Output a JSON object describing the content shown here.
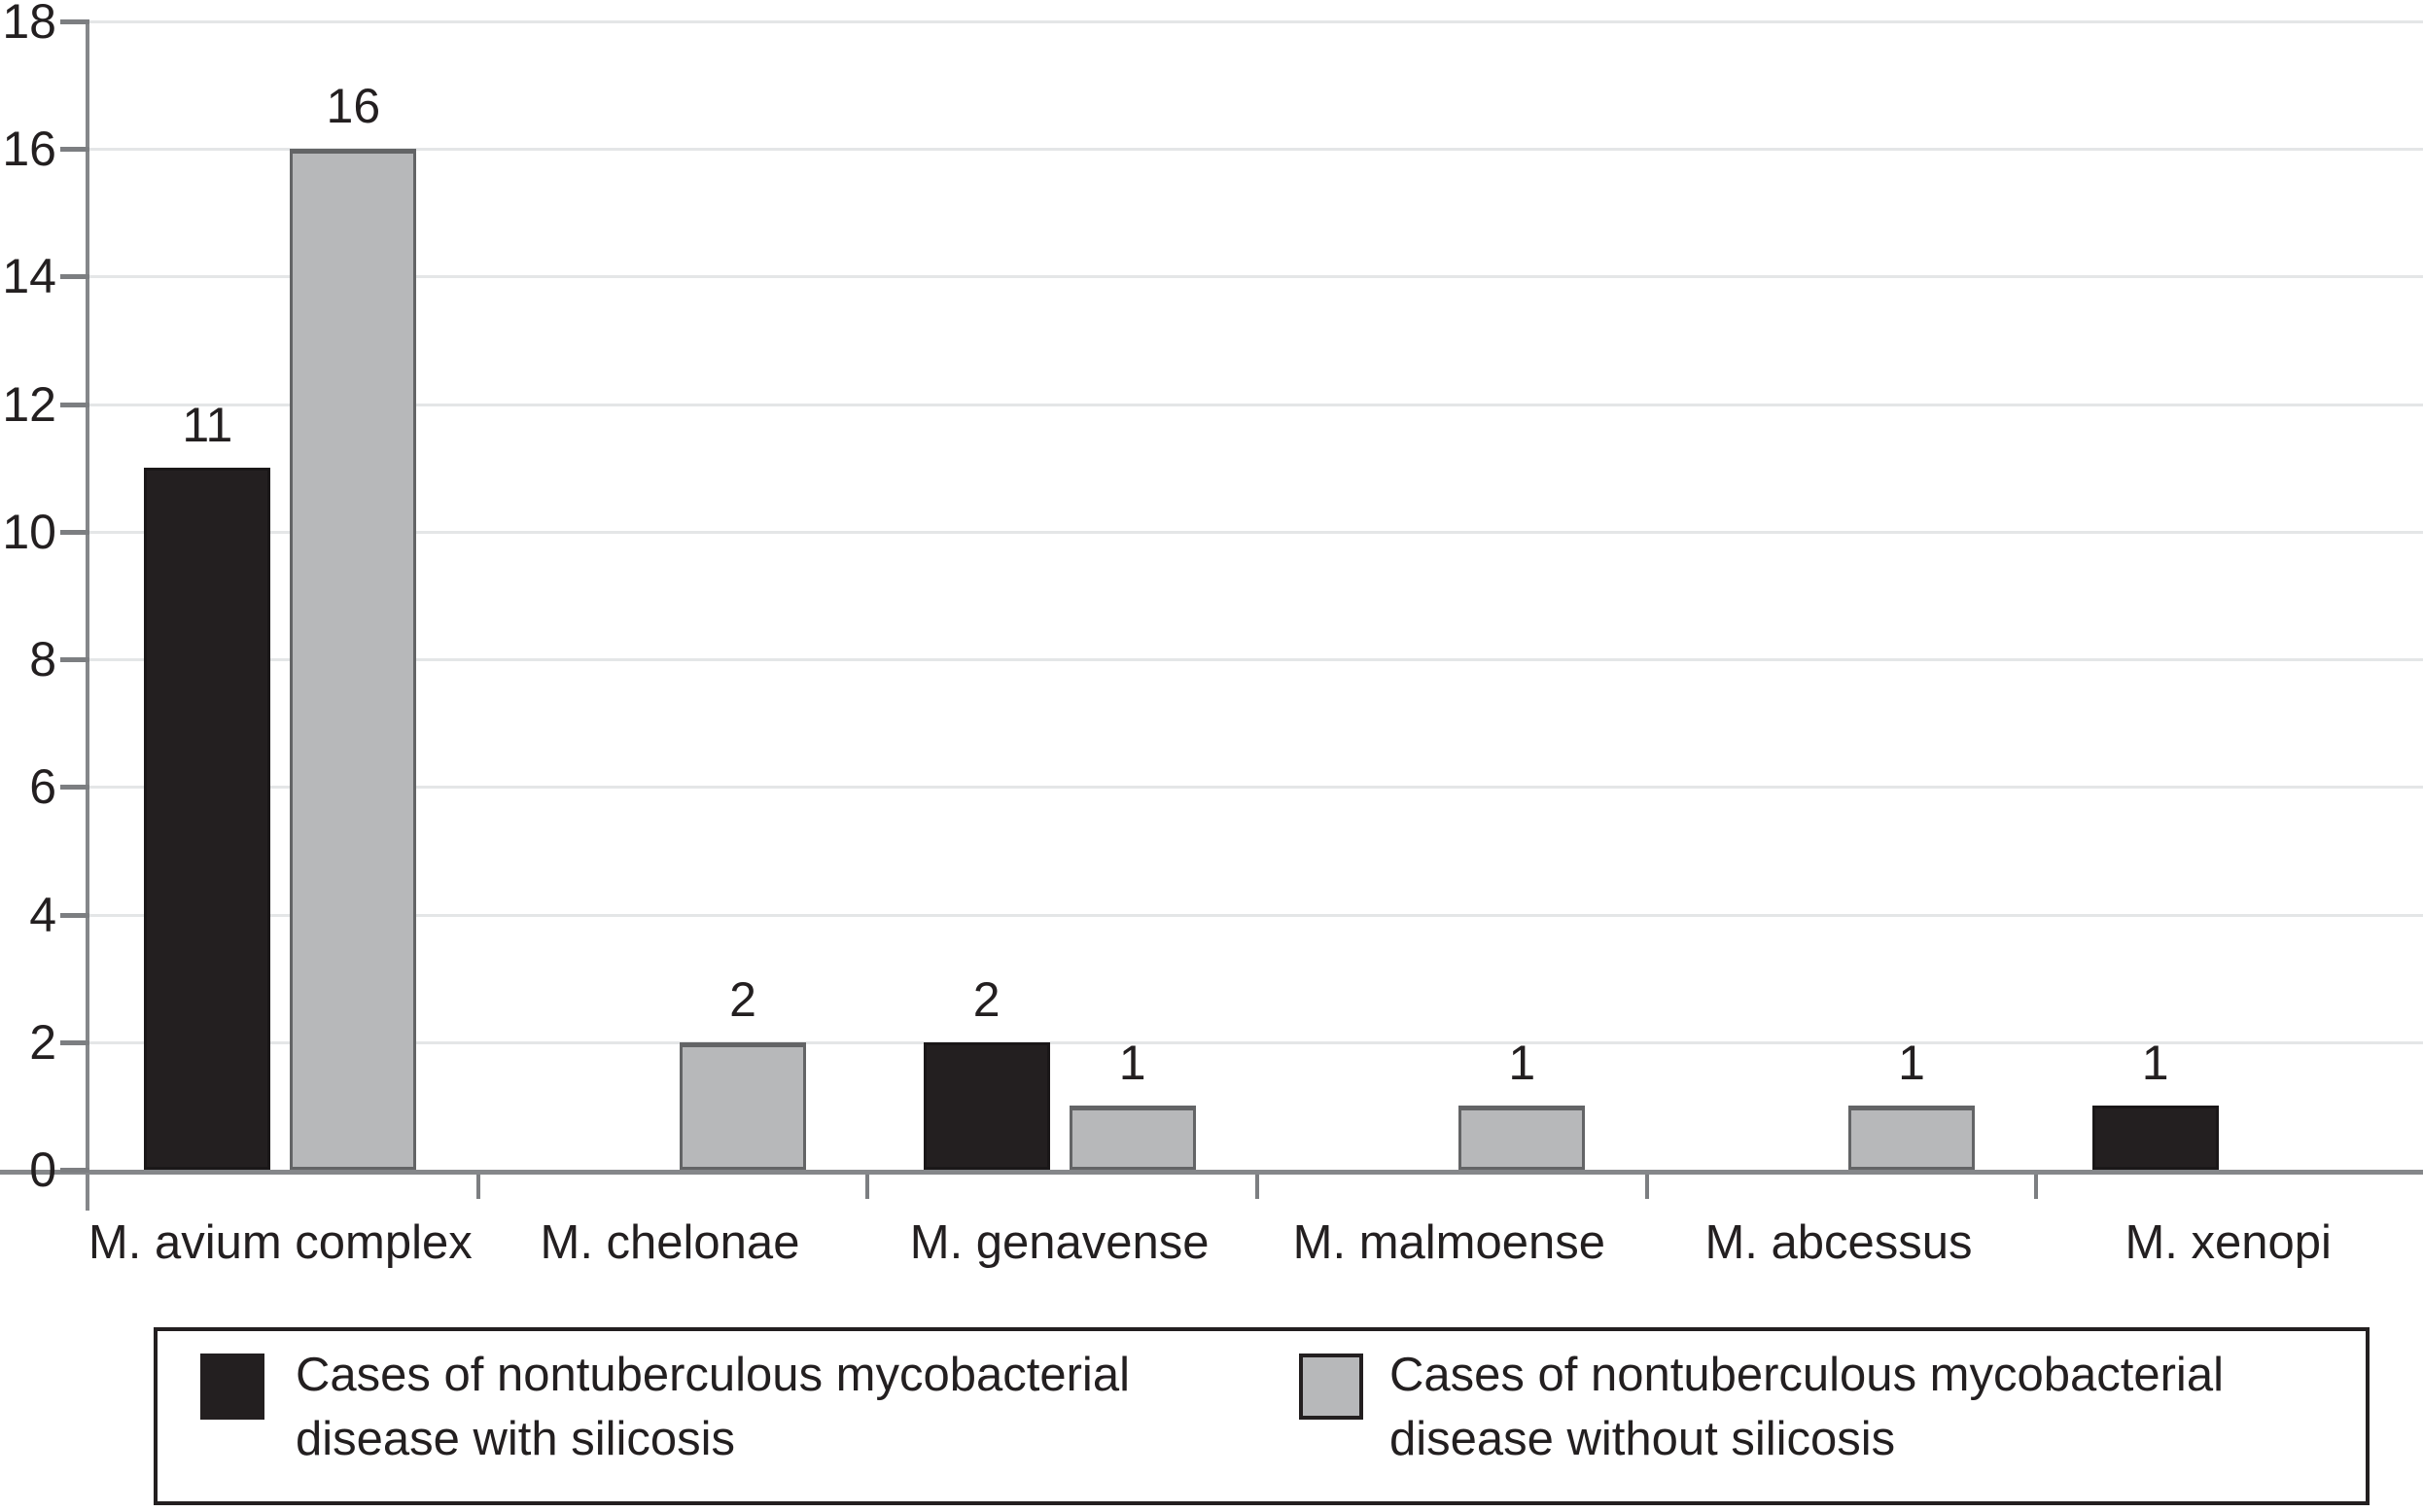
{
  "figure": {
    "description": "Grouped bar chart of nontuberculous mycobacterial disease cases by species"
  },
  "chart_data": {
    "type": "bar",
    "categories": [
      "M. avium complex",
      "M. chelonae",
      "M. genavense",
      "M. malmoense",
      "M. abcessus",
      "M. xenopi"
    ],
    "series": [
      {
        "name": "Cases of nontuberculous mycobacterial disease with silicosis",
        "color": "#231f20",
        "values": [
          11,
          0,
          2,
          0,
          0,
          1
        ]
      },
      {
        "name": "Cases of nontuberculous mycobacterial disease without silicosis",
        "color": "#b7b8ba",
        "values": [
          16,
          2,
          1,
          1,
          1,
          0
        ]
      }
    ],
    "title": "",
    "xlabel": "",
    "ylabel": "",
    "ylim": [
      0,
      18
    ],
    "ytick_step": 2,
    "ytick_labels": [
      "0",
      "2",
      "4",
      "6",
      "8",
      "10",
      "12",
      "14",
      "16",
      "18"
    ],
    "grid": true,
    "bar_value_labels_shown": true,
    "legend_position": "bottom"
  },
  "legend": {
    "entries": [
      {
        "swatch": "black-square-swatch",
        "color": "#231f20",
        "lines": [
          "Cases of nontuberculous mycobacterial",
          "disease with silicosis"
        ]
      },
      {
        "swatch": "gray-square-swatch",
        "color": "#b7b8ba",
        "lines": [
          "Cases of nontuberculous mycobacterial",
          "disease without silicosis"
        ]
      }
    ]
  },
  "colors": {
    "bar_with_silicosis": "#231f20",
    "bar_without_silicosis": "#b7b8ba",
    "bar_gray_border": "#636466",
    "axis": "#85878a",
    "gridline": "#e4e6e7",
    "text": "#231f20",
    "background": "#ffffff"
  }
}
